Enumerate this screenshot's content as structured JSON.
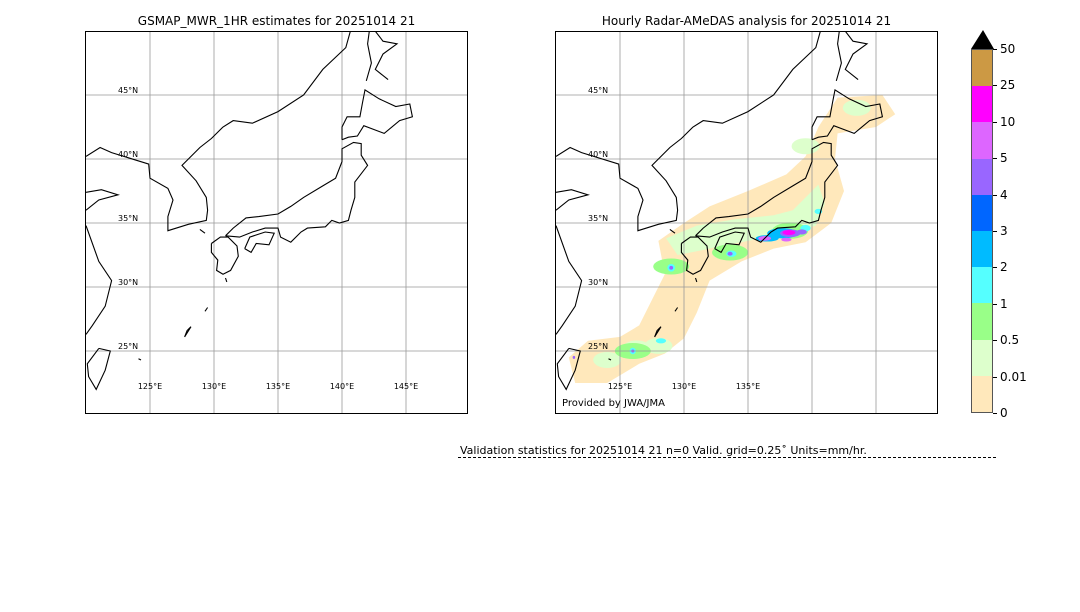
{
  "left_map": {
    "title": "GSMAP_MWR_1HR estimates for 20251014 21",
    "lat_labels": [
      "45°N",
      "40°N",
      "35°N",
      "30°N",
      "25°N"
    ],
    "lon_labels": [
      "125°E",
      "130°E",
      "135°E",
      "140°E",
      "145°E"
    ]
  },
  "right_map": {
    "title": "Hourly Radar-AMeDAS analysis for 20251014 21",
    "lat_labels": [
      "45°N",
      "40°N",
      "35°N",
      "30°N",
      "25°N"
    ],
    "lon_labels": [
      "125°E",
      "130°E",
      "135°E"
    ],
    "credit": "Provided by JWA/JMA"
  },
  "colorbar": {
    "labels": [
      "50",
      "25",
      "10",
      "5",
      "4",
      "3",
      "2",
      "1",
      "0.5",
      "0.01",
      "0"
    ],
    "colors": [
      "#cc9944",
      "#ff00ff",
      "#dd66ff",
      "#9966ff",
      "#0066ff",
      "#00bbff",
      "#55ffff",
      "#99ff88",
      "#ddffcc",
      "#ffe8bb"
    ],
    "extend_color": "#000000"
  },
  "validation": "Validation statistics for 20251014 21  n=0 Valid. grid=0.25˚ Units=mm/hr."
}
